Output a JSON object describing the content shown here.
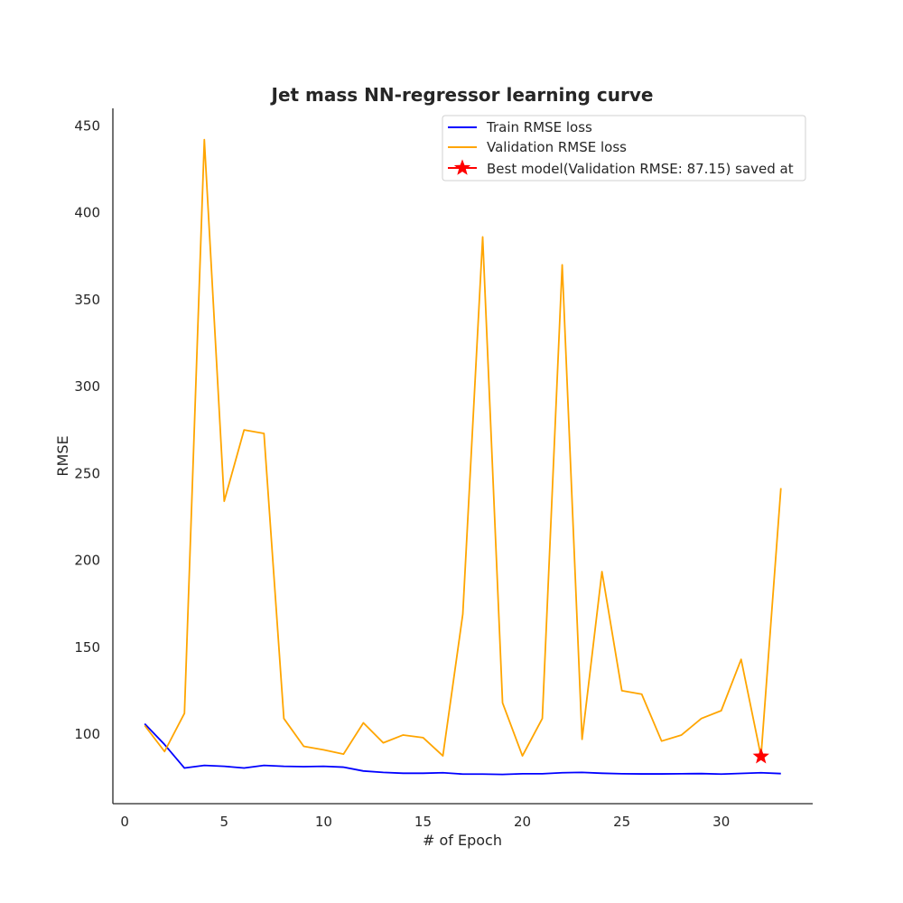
{
  "chart_data": {
    "type": "line",
    "title": "Jet mass NN-regressor learning curve",
    "xlabel": "# of Epoch",
    "ylabel": "RMSE",
    "xlim": [
      -0.6,
      34.6
    ],
    "ylim": [
      60,
      460
    ],
    "xticks": [
      0,
      5,
      10,
      15,
      20,
      25,
      30
    ],
    "yticks": [
      100,
      150,
      200,
      250,
      300,
      350,
      400,
      450
    ],
    "grid": false,
    "legend_position": "top-right",
    "x": [
      1,
      2,
      3,
      4,
      5,
      6,
      7,
      8,
      9,
      10,
      11,
      12,
      13,
      14,
      15,
      16,
      17,
      18,
      19,
      20,
      21,
      22,
      23,
      24,
      25,
      26,
      27,
      28,
      29,
      30,
      31,
      32,
      33
    ],
    "series": [
      {
        "name": "Train RMSE loss",
        "color": "#0000ff",
        "values": [
          106,
          94,
          80.5,
          82,
          81.5,
          80.5,
          82,
          81.5,
          81.3,
          81.5,
          81,
          78.8,
          78,
          77.5,
          77.5,
          77.8,
          77,
          77,
          76.8,
          77.2,
          77.2,
          77.8,
          78,
          77.5,
          77.2,
          77.1,
          77.1,
          77.2,
          77.3,
          77,
          77.4,
          77.8,
          77.3
        ]
      },
      {
        "name": "Validation RMSE loss",
        "color": "#ffa500",
        "values": [
          105,
          90,
          112,
          442,
          234,
          275,
          273,
          109,
          93,
          91,
          88.5,
          106.5,
          95,
          99.5,
          98,
          87.5,
          169,
          386,
          118,
          87.5,
          109,
          370,
          97,
          193.5,
          125,
          123,
          96,
          99.5,
          109,
          113.5,
          143,
          87.15,
          241.5
        ]
      }
    ],
    "best_model": {
      "label": "Best model(Validation RMSE: 87.15) saved at",
      "x": 32,
      "y": 87.15,
      "color": "#ff0000",
      "marker": "star"
    }
  }
}
